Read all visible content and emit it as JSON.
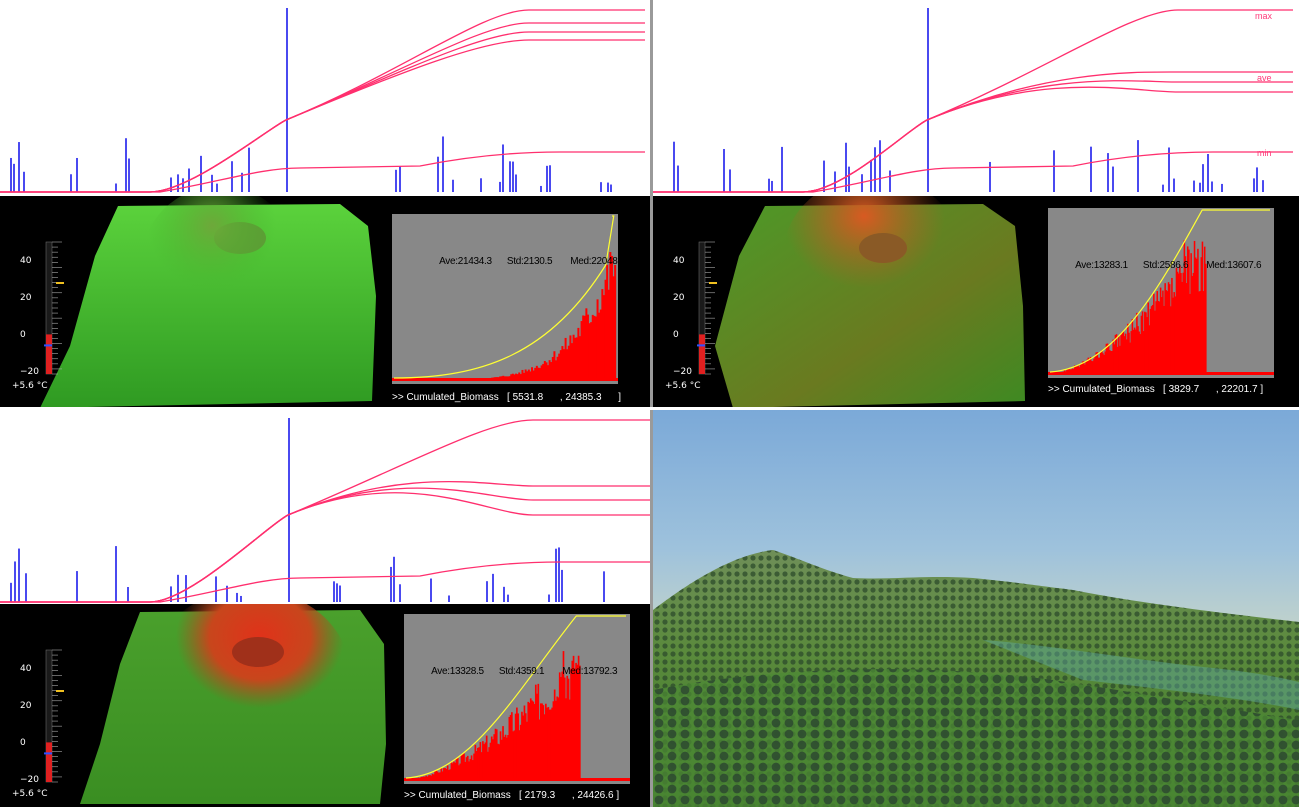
{
  "panels": [
    {
      "stats": {
        "ave": "Ave:21434.3",
        "std": "Std:2130.5",
        "med": "Med:22048.9"
      },
      "caption": ">> Cumulated_Biomass   [ 5531.8      , 24385.3      ]",
      "thermo": {
        "ticks": [
          "40",
          "20",
          "0",
          "−20"
        ],
        "temp": "+5.6 °C",
        "level": 0.3
      }
    },
    {
      "stats": {
        "ave": "Ave:13283.1",
        "std": "Std:2586.6",
        "med": "Med:13607.6"
      },
      "caption": ">> Cumulated_Biomass   [ 3829.7      , 22201.7 ]",
      "thermo": {
        "ticks": [
          "40",
          "20",
          "0",
          "−20"
        ],
        "temp": "+5.6 °C",
        "level": 0.3
      }
    },
    {
      "stats": {
        "ave": "Ave:13328.5",
        "std": "Std:4359.1",
        "med": "Med:13792.3"
      },
      "caption": ">> Cumulated_Biomass   [ 2179.3      , 24426.6 ]",
      "thermo": {
        "ticks": [
          "40",
          "20",
          "0",
          "−20"
        ],
        "temp": "+5.6 °C",
        "level": 0.3
      }
    }
  ],
  "legend": {
    "max": "max",
    "ave": "ave",
    "min": "min"
  },
  "colors": {
    "curve": "#ff2f6e",
    "bars": "#4a4af0",
    "histogram": "#ff0000",
    "cdf": "#ffff33",
    "hist_bg": "#888888",
    "terrain_green": "#3cb52a",
    "terrain_red": "#d83a1e"
  }
}
